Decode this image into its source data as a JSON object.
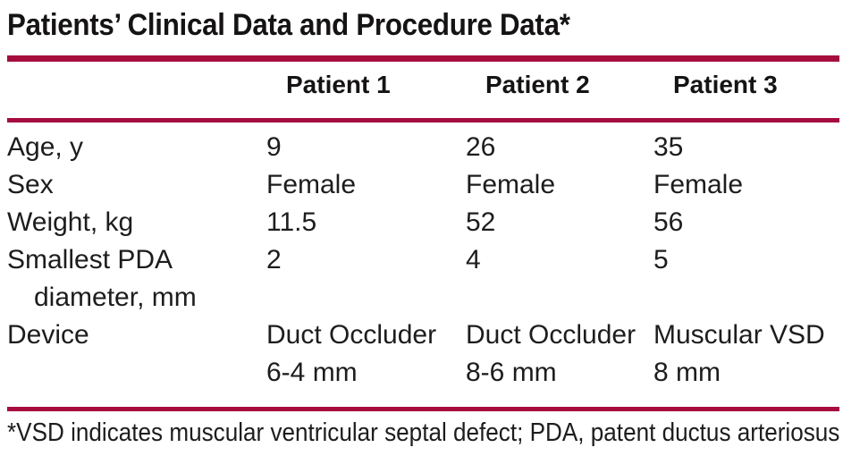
{
  "colors": {
    "accent_rule": "#a60c3e",
    "text": "#1e1c1d"
  },
  "title": "Patients’ Clinical Data and Procedure Data*",
  "table": {
    "headers": [
      "Patient 1",
      "Patient 2",
      "Patient 3"
    ],
    "rows": [
      {
        "label": [
          "Age, y"
        ],
        "patient1": [
          "9"
        ],
        "patient2": [
          "26"
        ],
        "patient3": [
          "35"
        ]
      },
      {
        "label": [
          "Sex"
        ],
        "patient1": [
          "Female"
        ],
        "patient2": [
          "Female"
        ],
        "patient3": [
          "Female"
        ]
      },
      {
        "label": [
          "Weight, kg"
        ],
        "patient1": [
          "11.5"
        ],
        "patient2": [
          "52"
        ],
        "patient3": [
          "56"
        ]
      },
      {
        "label": [
          "Smallest PDA",
          "diameter, mm"
        ],
        "patient1": [
          "2"
        ],
        "patient2": [
          "4"
        ],
        "patient3": [
          "5"
        ]
      },
      {
        "label": [
          "Device"
        ],
        "patient1": [
          "Duct Occluder",
          "6-4 mm"
        ],
        "patient2": [
          "Duct Occluder",
          "8-6 mm"
        ],
        "patient3": [
          "Muscular VSD",
          "8 mm"
        ]
      }
    ]
  },
  "footnote": "*VSD indicates muscular ventricular septal defect; PDA, patent ductus arteriosus"
}
